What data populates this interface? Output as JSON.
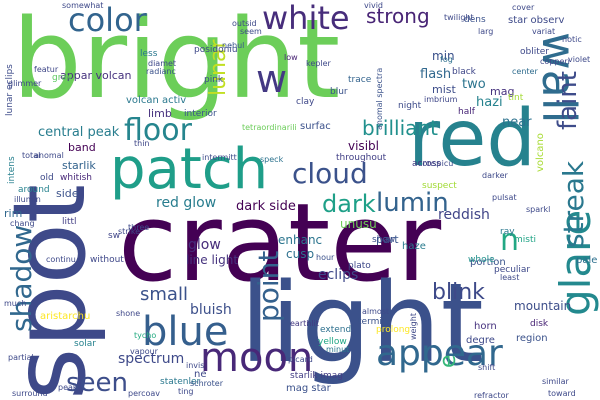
{
  "words": [
    {
      "text": "bright",
      "color": "#6cce59"
    },
    {
      "text": "crater",
      "color": "#440154"
    },
    {
      "text": "spot",
      "color": "#3e4989"
    },
    {
      "text": "light",
      "color": "#3b518b"
    },
    {
      "text": "red",
      "color": "#26828e"
    },
    {
      "text": "patch",
      "color": "#1f9e89"
    },
    {
      "text": "wall",
      "color": "#2f6c8e"
    },
    {
      "text": "glare",
      "color": "#23898e"
    },
    {
      "text": "white",
      "color": "#472d7b"
    },
    {
      "text": "color",
      "color": "#32648e"
    },
    {
      "text": "floor",
      "color": "#25858e"
    },
    {
      "text": "blue",
      "color": "#355f8d"
    },
    {
      "text": "appear",
      "color": "#31688e"
    },
    {
      "text": "moon",
      "color": "#482878"
    },
    {
      "text": "shadow",
      "color": "#31688e"
    },
    {
      "text": "point",
      "color": "#34618d"
    },
    {
      "text": "cloud",
      "color": "#3b528b"
    },
    {
      "text": "streak",
      "color": "#2a788e"
    },
    {
      "text": "faint",
      "color": "#3e4c8a"
    },
    {
      "text": "seen",
      "color": "#3d4e8a"
    },
    {
      "text": "lunar",
      "color": "#c2df23"
    },
    {
      "text": "dark",
      "color": "#1fa088"
    },
    {
      "text": "lumin",
      "color": "#33638d"
    },
    {
      "text": "strong",
      "color": "#482475"
    },
    {
      "text": "brilliant",
      "color": "#21908d"
    },
    {
      "text": "blink",
      "color": "#3e4a89"
    },
    {
      "text": "w",
      "color": "#443983"
    },
    {
      "text": "n",
      "color": "#22a884"
    },
    {
      "text": "e",
      "color": "#35b779"
    },
    {
      "text": "small",
      "color": "#3b528b"
    },
    {
      "text": "central peak",
      "color": "#287d8e"
    },
    {
      "text": "red glow",
      "color": "#287d8e"
    },
    {
      "text": "bluish",
      "color": "#3c4f8a"
    },
    {
      "text": "spectrum",
      "color": "#3e4989"
    },
    {
      "text": "volcan activ",
      "color": "#2a788e"
    },
    {
      "text": "glow",
      "color": "#472c7a"
    },
    {
      "text": "dark side",
      "color": "#440154"
    },
    {
      "text": "line light",
      "color": "#46337e"
    },
    {
      "text": "enhanc",
      "color": "#2b758e"
    },
    {
      "text": "eclips",
      "color": "#3f4889"
    },
    {
      "text": "unusu",
      "color": "#6ece58"
    },
    {
      "text": "part",
      "color": "#39568c"
    },
    {
      "text": "visibl",
      "color": "#440154"
    },
    {
      "text": "reddish",
      "color": "#404588"
    },
    {
      "text": "flash",
      "color": "#31688e"
    },
    {
      "text": "mist",
      "color": "#3d4d8a"
    },
    {
      "text": "near",
      "color": "#2c728e"
    },
    {
      "text": "two",
      "color": "#2b748e"
    },
    {
      "text": "hazi",
      "color": "#26828e"
    },
    {
      "text": "mag",
      "color": "#46327e"
    },
    {
      "text": "min",
      "color": "#3b518b"
    },
    {
      "text": "mountain",
      "color": "#3d4e8a"
    },
    {
      "text": "volcano",
      "color": "#a8db34"
    },
    {
      "text": "appar volcan",
      "color": "#46327e"
    },
    {
      "text": "lunar eclips",
      "color": "#3e4c8a"
    },
    {
      "text": "aristarchu",
      "color": "#fde725"
    },
    {
      "text": "starlik",
      "color": "#33638d"
    },
    {
      "text": "band",
      "color": "#440154"
    },
    {
      "text": "intens",
      "color": "#27808e"
    },
    {
      "text": "whitish",
      "color": "#482878"
    },
    {
      "text": "old",
      "color": "#3e4a89"
    },
    {
      "text": "around",
      "color": "#26828e"
    },
    {
      "text": "side",
      "color": "#3b528b"
    },
    {
      "text": "limb",
      "color": "#46307e"
    },
    {
      "text": "rim",
      "color": "#31688e"
    },
    {
      "text": "littl",
      "color": "#433e85"
    },
    {
      "text": "cusp",
      "color": "#2d708e"
    },
    {
      "text": "mag star",
      "color": "#3b518b"
    },
    {
      "text": "starlik imag",
      "color": "#433e85"
    },
    {
      "text": "statenler",
      "color": "#2a788e"
    },
    {
      "text": "tycho",
      "color": "#25ab82"
    },
    {
      "text": "solar",
      "color": "#26828e"
    },
    {
      "text": "shone",
      "color": "#3f4889"
    },
    {
      "text": "horn",
      "color": "#46327e"
    },
    {
      "text": "degre",
      "color": "#3e4989"
    },
    {
      "text": "region",
      "color": "#3b528b"
    },
    {
      "text": "disk",
      "color": "#482475"
    },
    {
      "text": "portion",
      "color": "#3a548c"
    },
    {
      "text": "haze",
      "color": "#297b8e"
    },
    {
      "text": "show",
      "color": "#3d4e8a"
    },
    {
      "text": "whole",
      "color": "#21918c"
    },
    {
      "text": "plato",
      "color": "#3e4989"
    },
    {
      "text": "across",
      "color": "#443983"
    },
    {
      "text": "throughout",
      "color": "#424086"
    },
    {
      "text": "surfac",
      "color": "#3b518b"
    },
    {
      "text": "clay",
      "color": "#3f4889"
    },
    {
      "text": "blur",
      "color": "#3b528b"
    },
    {
      "text": "night",
      "color": "#3e4c8a"
    },
    {
      "text": "trace",
      "color": "#33638d"
    },
    {
      "text": "interior",
      "color": "#3a548c"
    },
    {
      "text": "thin",
      "color": "#3f4788"
    },
    {
      "text": "intermitt",
      "color": "#3e4c8a"
    },
    {
      "text": "speck",
      "color": "#2c728e"
    },
    {
      "text": "peculiar",
      "color": "#3e4989"
    },
    {
      "text": "pale",
      "color": "#2d708e"
    },
    {
      "text": "misti",
      "color": "#20a486"
    },
    {
      "text": "ray",
      "color": "#2a788e"
    },
    {
      "text": "without",
      "color": "#3f4889"
    },
    {
      "text": "continu",
      "color": "#3e4989"
    },
    {
      "text": "sw",
      "color": "#404688"
    },
    {
      "text": "hour",
      "color": "#3b518b"
    },
    {
      "text": "schroter",
      "color": "#3b528b"
    },
    {
      "text": "minut",
      "color": "#2a788e"
    },
    {
      "text": "extend",
      "color": "#2d708e"
    },
    {
      "text": "yellow",
      "color": "#21a685"
    },
    {
      "text": "prolong",
      "color": "#fde725"
    },
    {
      "text": "termin",
      "color": "#3b528b"
    },
    {
      "text": "earthlit",
      "color": "#443983"
    },
    {
      "text": "suspect",
      "color": "#a2da37"
    },
    {
      "text": "dens",
      "color": "#3b528b"
    },
    {
      "text": "star observ",
      "color": "#3e4a89"
    },
    {
      "text": "center",
      "color": "#2f6c8e"
    },
    {
      "text": "black",
      "color": "#3f4788"
    },
    {
      "text": "imbrium",
      "color": "#3f4788"
    },
    {
      "text": "half",
      "color": "#482677"
    },
    {
      "text": "tint",
      "color": "#a5db36"
    },
    {
      "text": "fog",
      "color": "#2d708e"
    },
    {
      "text": "copperi",
      "color": "#3f4889"
    },
    {
      "text": "posidoniu",
      "color": "#3e4989"
    },
    {
      "text": "radianc",
      "color": "#3b528b"
    },
    {
      "text": "diamet",
      "color": "#3e4989"
    },
    {
      "text": "less",
      "color": "#2a788e"
    },
    {
      "text": "glimmer",
      "color": "#3e4989"
    },
    {
      "text": "gray",
      "color": "#5ec962"
    },
    {
      "text": "featur",
      "color": "#3f4788"
    },
    {
      "text": "pink",
      "color": "#3d4e8a"
    },
    {
      "text": "nebul",
      "color": "#39568c"
    },
    {
      "text": "low",
      "color": "#482374"
    },
    {
      "text": "seem",
      "color": "#3e4c8a"
    },
    {
      "text": "cover",
      "color": "#3e4989"
    },
    {
      "text": "larg",
      "color": "#3e4989"
    },
    {
      "text": "variat",
      "color": "#3e4989"
    },
    {
      "text": "notic",
      "color": "#3e4989"
    },
    {
      "text": "violet",
      "color": "#3e4989"
    },
    {
      "text": "obliter",
      "color": "#3e4989"
    },
    {
      "text": "anomal spectra",
      "color": "#3b528b"
    },
    {
      "text": "tetraordinarili",
      "color": "#6ccd5a"
    },
    {
      "text": "conspicu",
      "color": "#3e4989"
    },
    {
      "text": "pulsat",
      "color": "#3e4989"
    },
    {
      "text": "sparkl",
      "color": "#3e4989"
    },
    {
      "text": "darker",
      "color": "#3e4989"
    },
    {
      "text": "almost",
      "color": "#3e4989"
    },
    {
      "text": "least",
      "color": "#3e4989"
    },
    {
      "text": "similar",
      "color": "#3e4989"
    },
    {
      "text": "toward",
      "color": "#3e4989"
    },
    {
      "text": "refractor",
      "color": "#3e4989"
    },
    {
      "text": "weight",
      "color": "#3e4989"
    },
    {
      "text": "surround",
      "color": "#3e4989"
    },
    {
      "text": "percoav",
      "color": "#3e4989"
    },
    {
      "text": "invis",
      "color": "#3e4989"
    },
    {
      "text": "ting",
      "color": "#3e4989"
    },
    {
      "text": "picard",
      "color": "#3e4989"
    },
    {
      "text": "vapour",
      "color": "#3e4989"
    },
    {
      "text": "strike",
      "color": "#3e4989"
    },
    {
      "text": "partial",
      "color": "#3e4989"
    },
    {
      "text": "illumin",
      "color": "#3e4989"
    },
    {
      "text": "total",
      "color": "#3e4989"
    },
    {
      "text": "anomal",
      "color": "#3e4989"
    },
    {
      "text": "ne",
      "color": "#3e4989"
    },
    {
      "text": "kepler",
      "color": "#3e4989"
    },
    {
      "text": "twilight",
      "color": "#3e4989"
    },
    {
      "text": "vivid",
      "color": "#3e4989"
    },
    {
      "text": "somewhat",
      "color": "#3e4989"
    },
    {
      "text": "outsid",
      "color": "#3e4989"
    },
    {
      "text": "three",
      "color": "#3e4989"
    },
    {
      "text": "much",
      "color": "#3e4989"
    },
    {
      "text": "peak",
      "color": "#3e4989"
    },
    {
      "text": "chang",
      "color": "#3e4989"
    },
    {
      "text": "shift",
      "color": "#3e4989"
    }
  ]
}
